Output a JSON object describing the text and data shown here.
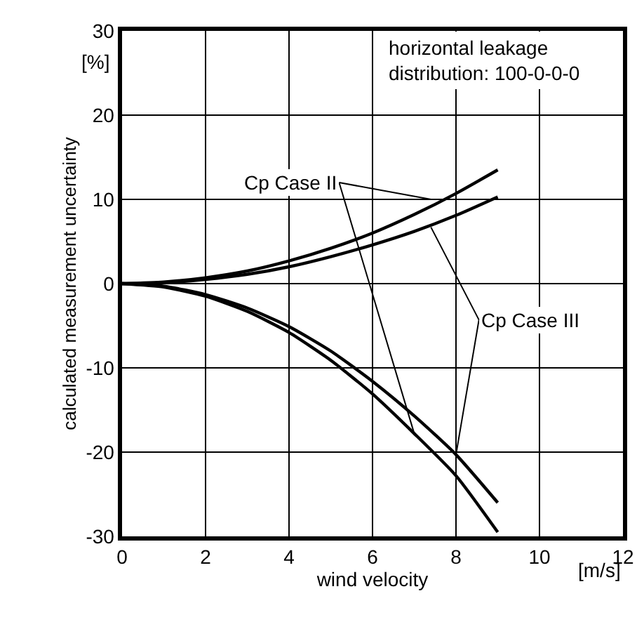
{
  "chart_data": {
    "type": "line",
    "xlabel": "wind velocity",
    "ylabel": "calculated measurement uncertainty",
    "x": [
      0,
      1,
      2,
      3,
      4,
      5,
      6,
      7,
      8,
      9
    ],
    "series": [
      {
        "color": "#000000",
        "values": [
          0,
          0.2,
          0.7,
          1.5,
          2.7,
          4.2,
          6.0,
          8.2,
          10.7,
          13.5
        ]
      },
      {
        "color": "#000000",
        "values": [
          0,
          0.1,
          0.5,
          1.1,
          2.0,
          3.2,
          4.6,
          6.2,
          8.1,
          10.3
        ]
      },
      {
        "color": "#000000",
        "values": [
          0,
          -0.4,
          -1.5,
          -3.3,
          -5.8,
          -9.1,
          -13.1,
          -17.8,
          -22.8,
          -29.5
        ]
      },
      {
        "color": "#000000",
        "values": [
          0,
          -0.3,
          -1.3,
          -2.9,
          -5.1,
          -8.0,
          -11.6,
          -15.7,
          -20.3,
          -26.0
        ]
      }
    ],
    "annotations": [
      "horizontal leakage\ndistribution: 100-0-0-0",
      "[%]",
      "[m/s]",
      {
        "text": "Cp Case II",
        "x": 7.4,
        "y": 10
      },
      {
        "text": "Cp Case III",
        "x": 7.4,
        "y": 6.7
      }
    ],
    "xlim": [
      0,
      12
    ],
    "xticks": [
      0,
      2,
      4,
      6,
      8,
      10,
      12
    ],
    "ylim": [
      -30,
      30
    ],
    "yticks": [
      -30,
      -20,
      -10,
      0,
      10,
      20,
      30
    ],
    "grid": true,
    "marker": "none",
    "line_style": "solid"
  }
}
